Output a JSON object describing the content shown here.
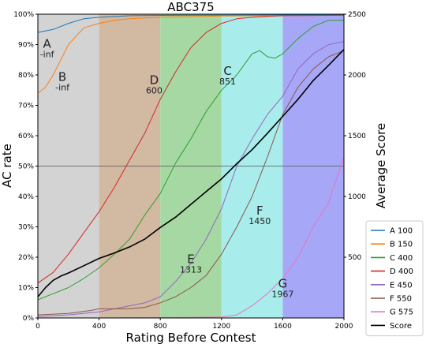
{
  "chart_data": {
    "type": "line",
    "title": "ABC375",
    "xlabel": "Rating Before Contest",
    "ylabel": "AC rate",
    "y2label": "Average Score",
    "xlim": [
      0,
      2000
    ],
    "ylim": [
      0,
      100
    ],
    "y2lim": [
      0,
      2500
    ],
    "x_ticks": [
      "0",
      "400",
      "800",
      "1200",
      "1600",
      "2000"
    ],
    "y_ticks": [
      "0%",
      "10%",
      "20%",
      "30%",
      "40%",
      "50%",
      "60%",
      "70%",
      "80%",
      "90%",
      "100%"
    ],
    "y2_ticks": [
      "500",
      "1000",
      "1500",
      "2000",
      "2500"
    ],
    "grid": "horizontal line at 50%",
    "legend_position": "right, outside plot",
    "rating_bands": [
      {
        "from": 0,
        "to": 400,
        "color": "#d3d3d3"
      },
      {
        "from": 400,
        "to": 800,
        "color": "#d2b9a2"
      },
      {
        "from": 800,
        "to": 1200,
        "color": "#a6d8a3"
      },
      {
        "from": 1200,
        "to": 1600,
        "color": "#a8ecec"
      },
      {
        "from": 1600,
        "to": 2000,
        "color": "#a7a7f7"
      }
    ],
    "series": [
      {
        "name": "A 100",
        "color": "#1f77b4",
        "axis": "left",
        "points": [
          [
            0,
            94
          ],
          [
            100,
            95
          ],
          [
            200,
            97
          ],
          [
            300,
            98.5
          ],
          [
            400,
            99
          ],
          [
            600,
            99.5
          ],
          [
            800,
            99.6
          ],
          [
            1200,
            99.7
          ],
          [
            2000,
            99.8
          ]
        ]
      },
      {
        "name": "B 150",
        "color": "#ff7f0e",
        "axis": "left",
        "points": [
          [
            0,
            74
          ],
          [
            50,
            76
          ],
          [
            100,
            80
          ],
          [
            150,
            85
          ],
          [
            200,
            90
          ],
          [
            300,
            95.5
          ],
          [
            400,
            97
          ],
          [
            500,
            98
          ],
          [
            600,
            98.5
          ],
          [
            800,
            99
          ],
          [
            1000,
            99.2
          ],
          [
            1200,
            99.4
          ],
          [
            2000,
            99.6
          ]
        ]
      },
      {
        "name": "C 400",
        "color": "#2ca02c",
        "axis": "left",
        "points": [
          [
            0,
            6
          ],
          [
            100,
            8
          ],
          [
            200,
            10
          ],
          [
            300,
            13
          ],
          [
            400,
            16.5
          ],
          [
            500,
            21
          ],
          [
            600,
            26
          ],
          [
            700,
            34
          ],
          [
            800,
            41
          ],
          [
            900,
            51
          ],
          [
            1000,
            59
          ],
          [
            1100,
            68
          ],
          [
            1200,
            75
          ],
          [
            1300,
            80
          ],
          [
            1400,
            87
          ],
          [
            1450,
            88
          ],
          [
            1500,
            86
          ],
          [
            1550,
            85.5
          ],
          [
            1600,
            87
          ],
          [
            1700,
            92
          ],
          [
            1800,
            96
          ],
          [
            1900,
            98
          ],
          [
            2000,
            98
          ]
        ]
      },
      {
        "name": "D 400",
        "color": "#d62728",
        "axis": "left",
        "points": [
          [
            0,
            11.5
          ],
          [
            100,
            15
          ],
          [
            200,
            21
          ],
          [
            300,
            28
          ],
          [
            400,
            35
          ],
          [
            500,
            43
          ],
          [
            600,
            52
          ],
          [
            700,
            61
          ],
          [
            800,
            72
          ],
          [
            900,
            81
          ],
          [
            1000,
            89
          ],
          [
            1100,
            94
          ],
          [
            1200,
            97
          ],
          [
            1300,
            98.5
          ],
          [
            1400,
            99
          ],
          [
            1600,
            99.5
          ],
          [
            2000,
            99.7
          ]
        ]
      },
      {
        "name": "E 450",
        "color": "#9467bd",
        "axis": "left",
        "points": [
          [
            0,
            0.5
          ],
          [
            200,
            1
          ],
          [
            400,
            2
          ],
          [
            600,
            4
          ],
          [
            700,
            5
          ],
          [
            800,
            7
          ],
          [
            900,
            12
          ],
          [
            1000,
            18
          ],
          [
            1100,
            26
          ],
          [
            1200,
            36
          ],
          [
            1300,
            50
          ],
          [
            1400,
            59
          ],
          [
            1500,
            67
          ],
          [
            1600,
            73
          ],
          [
            1700,
            82
          ],
          [
            1800,
            87
          ],
          [
            1900,
            90
          ],
          [
            2000,
            91
          ]
        ]
      },
      {
        "name": "F 550",
        "color": "#8c564b",
        "axis": "left",
        "points": [
          [
            0,
            1
          ],
          [
            200,
            1.5
          ],
          [
            350,
            2.5
          ],
          [
            400,
            3
          ],
          [
            500,
            3
          ],
          [
            600,
            3
          ],
          [
            700,
            3.5
          ],
          [
            800,
            5
          ],
          [
            900,
            7
          ],
          [
            1000,
            10
          ],
          [
            1100,
            14
          ],
          [
            1200,
            21
          ],
          [
            1300,
            30
          ],
          [
            1400,
            40
          ],
          [
            1500,
            53
          ],
          [
            1600,
            67
          ],
          [
            1700,
            76
          ],
          [
            1800,
            82
          ],
          [
            1900,
            86
          ],
          [
            2000,
            88
          ]
        ]
      },
      {
        "name": "G 575",
        "color": "#e377c2",
        "axis": "left",
        "points": [
          [
            0,
            0
          ],
          [
            400,
            0
          ],
          [
            1000,
            0.2
          ],
          [
            1200,
            0.3
          ],
          [
            1300,
            1
          ],
          [
            1400,
            4
          ],
          [
            1500,
            8
          ],
          [
            1600,
            13
          ],
          [
            1700,
            20
          ],
          [
            1800,
            30
          ],
          [
            1900,
            38
          ],
          [
            2000,
            53
          ]
        ]
      },
      {
        "name": "Score",
        "color": "#000000",
        "axis": "right",
        "points": [
          [
            0,
            175
          ],
          [
            50,
            250
          ],
          [
            100,
            310
          ],
          [
            150,
            345
          ],
          [
            200,
            370
          ],
          [
            300,
            430
          ],
          [
            400,
            490
          ],
          [
            500,
            535
          ],
          [
            600,
            585
          ],
          [
            700,
            650
          ],
          [
            800,
            745
          ],
          [
            900,
            830
          ],
          [
            1000,
            935
          ],
          [
            1100,
            1040
          ],
          [
            1200,
            1145
          ],
          [
            1300,
            1270
          ],
          [
            1400,
            1385
          ],
          [
            1500,
            1520
          ],
          [
            1600,
            1660
          ],
          [
            1700,
            1800
          ],
          [
            1800,
            1955
          ],
          [
            1900,
            2080
          ],
          [
            2000,
            2210
          ]
        ]
      }
    ],
    "annotations": [
      {
        "letter": "A",
        "value": "-inf",
        "x": 60,
        "y": 89
      },
      {
        "letter": "B",
        "value": "-inf",
        "x": 160,
        "y": 78
      },
      {
        "letter": "C",
        "value": "851",
        "x": 1240,
        "y": 80
      },
      {
        "letter": "D",
        "value": "600",
        "x": 760,
        "y": 77
      },
      {
        "letter": "E",
        "value": "1313",
        "x": 1000,
        "y": 18
      },
      {
        "letter": "F",
        "value": "1450",
        "x": 1450,
        "y": 34
      },
      {
        "letter": "G",
        "value": "1967",
        "x": 1600,
        "y": 10
      }
    ]
  }
}
